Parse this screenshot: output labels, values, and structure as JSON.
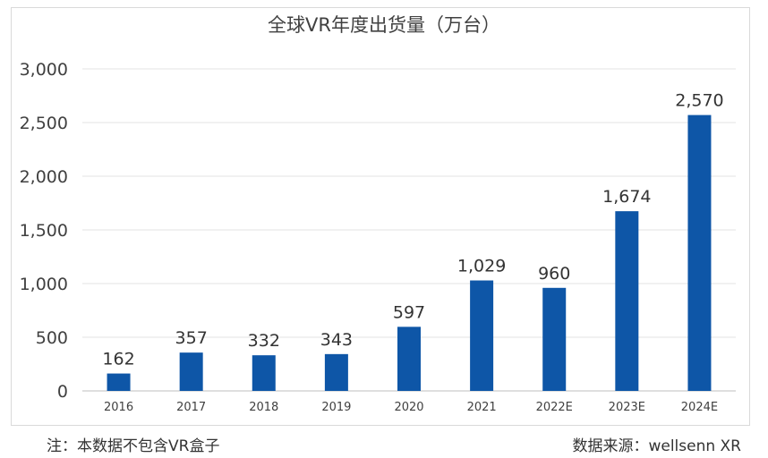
{
  "chart_data": {
    "type": "bar",
    "title": "全球VR年度出货量（万台）",
    "categories": [
      "2016",
      "2017",
      "2018",
      "2019",
      "2020",
      "2021",
      "2022E",
      "2023E",
      "2024E"
    ],
    "values": [
      162,
      357,
      332,
      343,
      597,
      1029,
      960,
      1674,
      2570
    ],
    "value_labels": [
      "162",
      "357",
      "332",
      "343",
      "597",
      "1,029",
      "960",
      "1,674",
      "2,570"
    ],
    "ylim": [
      0,
      3000
    ],
    "yticks": [
      0,
      500,
      1000,
      1500,
      2000,
      2500,
      3000
    ],
    "ytick_labels": [
      "0",
      "500",
      "1,000",
      "1,500",
      "2,000",
      "2,500",
      "3,000"
    ],
    "grid": true,
    "bar_color": "#0e56a7",
    "xlabel": "",
    "ylabel": ""
  },
  "footer": {
    "note": "注：本数据不包含VR盒子",
    "source": "数据来源：wellsenn XR"
  }
}
